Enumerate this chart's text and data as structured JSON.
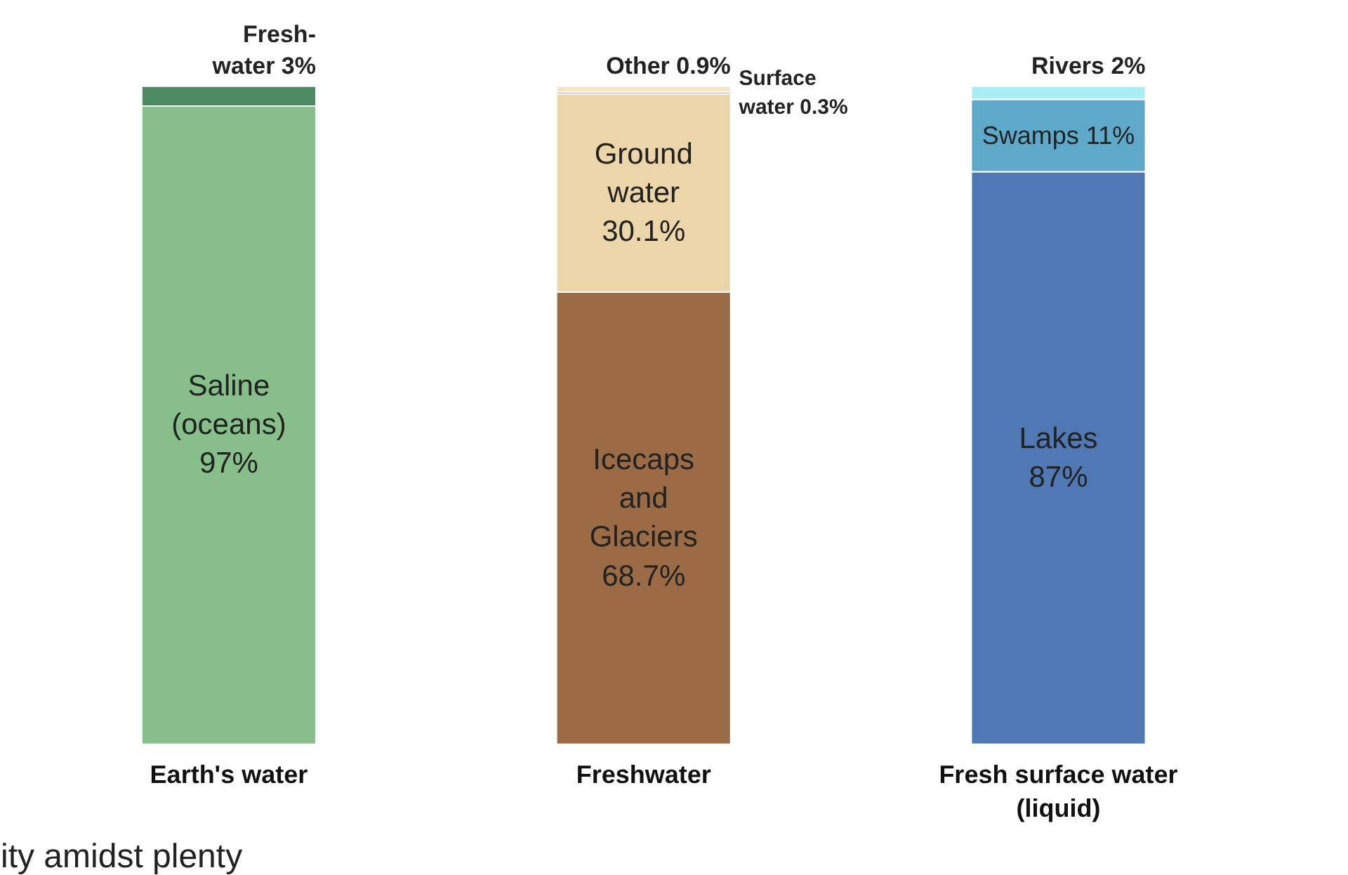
{
  "chart_data": {
    "type": "bar",
    "stacked": true,
    "categories": [
      "Earth's water",
      "Freshwater",
      "Fresh surface water\n(liquid)"
    ],
    "series": [
      {
        "name": "Saline\n(oceans)",
        "color": "#86bf8a",
        "values": [
          97,
          null,
          null
        ],
        "value_labels": [
          "97%",
          null,
          null
        ]
      },
      {
        "name": "Fresh-\nwater",
        "color": "#4e8a64",
        "values": [
          3,
          null,
          null
        ],
        "value_labels": [
          "3%",
          null,
          null
        ]
      },
      {
        "name": "Icecaps\nand\nGlaciers",
        "color": "#9a6b45",
        "values": [
          null,
          68.7,
          null
        ],
        "value_labels": [
          null,
          "68.7%",
          null
        ]
      },
      {
        "name": "Ground\nwater",
        "color": "#ecd5a8",
        "values": [
          null,
          30.1,
          null
        ],
        "value_labels": [
          null,
          "30.1%",
          null
        ]
      },
      {
        "name": "Surface\nwater",
        "color": "#b0603a",
        "values": [
          null,
          0.3,
          null
        ],
        "value_labels": [
          null,
          "0.3%",
          null
        ]
      },
      {
        "name": "Other",
        "color": "#f4e4c4",
        "values": [
          null,
          0.9,
          null
        ],
        "value_labels": [
          null,
          "0.9%",
          null
        ]
      },
      {
        "name": "Lakes",
        "color": "#4f78b5",
        "values": [
          null,
          null,
          87
        ],
        "value_labels": [
          null,
          null,
          "87%"
        ]
      },
      {
        "name": "Swamps",
        "color": "#5ea9c9",
        "values": [
          null,
          null,
          11
        ],
        "value_labels": [
          null,
          null,
          "11%"
        ]
      },
      {
        "name": "Rivers",
        "color": "#a9edf5",
        "values": [
          null,
          null,
          2
        ],
        "value_labels": [
          null,
          null,
          "2%"
        ]
      }
    ],
    "annotations": [
      "ity amidst plenty"
    ]
  }
}
